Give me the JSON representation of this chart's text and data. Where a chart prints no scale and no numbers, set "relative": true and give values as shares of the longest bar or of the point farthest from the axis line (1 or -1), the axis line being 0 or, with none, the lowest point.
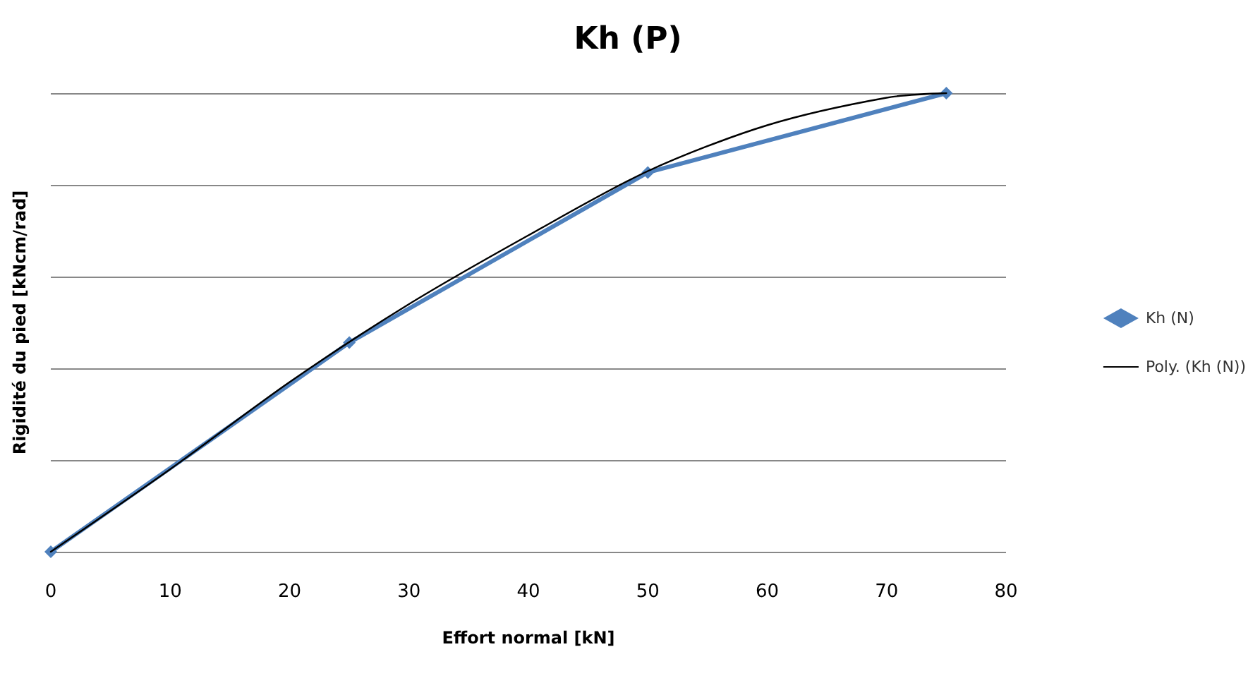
{
  "chart_data": {
    "type": "line",
    "title": "Kh (P)",
    "xlabel": "Effort normal [kN]",
    "ylabel": "Rigidité du pied [kNcm/rad]",
    "relative": true,
    "grid": "y",
    "legend": "right",
    "xlim": [
      0,
      80
    ],
    "xticks": [
      0,
      10,
      20,
      30,
      40,
      50,
      60,
      70,
      80
    ],
    "series": [
      {
        "name": "Kh (N)",
        "color": "#4f81bd",
        "marker": "diamond",
        "x": [
          0,
          25,
          50,
          75
        ],
        "values": [
          0,
          0.456,
          0.827,
          1
        ]
      },
      {
        "name": "Poly. (Kh (N))",
        "color": "#000000",
        "marker": "none",
        "x": [
          0,
          10,
          20,
          30,
          40,
          50,
          60,
          70,
          75
        ],
        "values": [
          0,
          0.18,
          0.37,
          0.54,
          0.69,
          0.83,
          0.93,
          0.99,
          1
        ]
      }
    ]
  }
}
